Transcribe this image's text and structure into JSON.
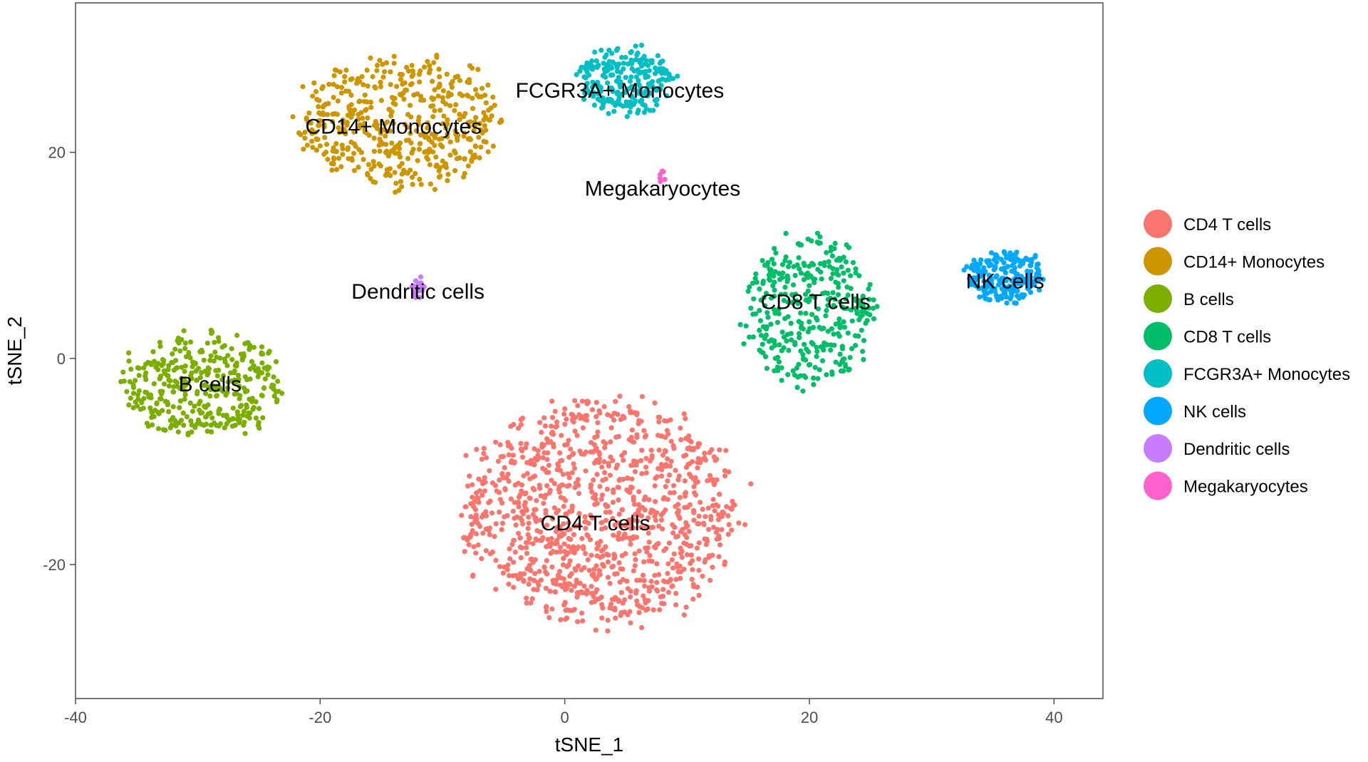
{
  "chart_data": {
    "type": "scatter",
    "title": "",
    "xlabel": "tSNE_1",
    "ylabel": "tSNE_2",
    "xlim": [
      -40,
      44
    ],
    "ylim": [
      -33,
      34.5
    ],
    "xticks": [
      -40,
      -20,
      0,
      20,
      40
    ],
    "yticks": [
      -20,
      0,
      20
    ],
    "xtick_labels": [
      "-40",
      "-20",
      "0",
      "20",
      "40"
    ],
    "ytick_labels": [
      "-20",
      "0",
      "20"
    ],
    "grid": false,
    "legend_position": "right",
    "legend": [
      {
        "label": "CD4 T cells",
        "color": "#F8766D"
      },
      {
        "label": "CD14+ Monocytes",
        "color": "#CD9600"
      },
      {
        "label": "B cells",
        "color": "#7CAE00"
      },
      {
        "label": "CD8 T cells",
        "color": "#00BE67"
      },
      {
        "label": "FCGR3A+ Monocytes",
        "color": "#00BFC4"
      },
      {
        "label": "NK cells",
        "color": "#00A9FF"
      },
      {
        "label": "Dendritic cells",
        "color": "#C77CFF"
      },
      {
        "label": "Megakaryocytes",
        "color": "#FF61CC"
      }
    ],
    "clusters": [
      {
        "name": "CD4 T cells",
        "color": "#F8766D",
        "center": [
          3,
          -15
        ],
        "spread": [
          11.5,
          11
        ],
        "count": 1100,
        "label": "CD4 T cells",
        "label_pos": [
          2.5,
          -16
        ]
      },
      {
        "name": "CD14+ Monocytes",
        "color": "#CD9600",
        "center": [
          -13.5,
          23
        ],
        "spread": [
          8.5,
          6.5
        ],
        "count": 480,
        "label": "CD14+ Monocytes",
        "label_pos": [
          -14,
          22.5
        ]
      },
      {
        "name": "B cells",
        "color": "#7CAE00",
        "center": [
          -29.5,
          -2.5
        ],
        "spread": [
          7,
          5
        ],
        "count": 380,
        "label": "B cells",
        "label_pos": [
          -29,
          -2.5
        ]
      },
      {
        "name": "CD8 T cells",
        "color": "#00BE67",
        "center": [
          20,
          4.5
        ],
        "spread": [
          5.5,
          7.5
        ],
        "count": 360,
        "label": "CD8 T cells",
        "label_pos": [
          20.5,
          5.5
        ]
      },
      {
        "name": "FCGR3A+ Monocytes",
        "color": "#00BFC4",
        "center": [
          5,
          27
        ],
        "spread": [
          4,
          3.3
        ],
        "count": 230,
        "label": "FCGR3A+ Monocytes",
        "label_pos": [
          4.5,
          26
        ]
      },
      {
        "name": "NK cells",
        "color": "#00A9FF",
        "center": [
          36,
          8
        ],
        "spread": [
          3.2,
          2.6
        ],
        "count": 220,
        "label": "NK cells",
        "label_pos": [
          36,
          7.5
        ]
      },
      {
        "name": "Dendritic cells",
        "color": "#C77CFF",
        "center": [
          -12,
          7
        ],
        "spread": [
          0.6,
          1.2
        ],
        "count": 18,
        "label": "Dendritic cells",
        "label_pos": [
          -12,
          6.5
        ]
      },
      {
        "name": "Megakaryocytes",
        "color": "#FF61CC",
        "center": [
          8,
          17.5
        ],
        "spread": [
          0.25,
          0.8
        ],
        "count": 6,
        "label": "Megakaryocytes",
        "label_pos": [
          8,
          16.5
        ]
      }
    ]
  }
}
